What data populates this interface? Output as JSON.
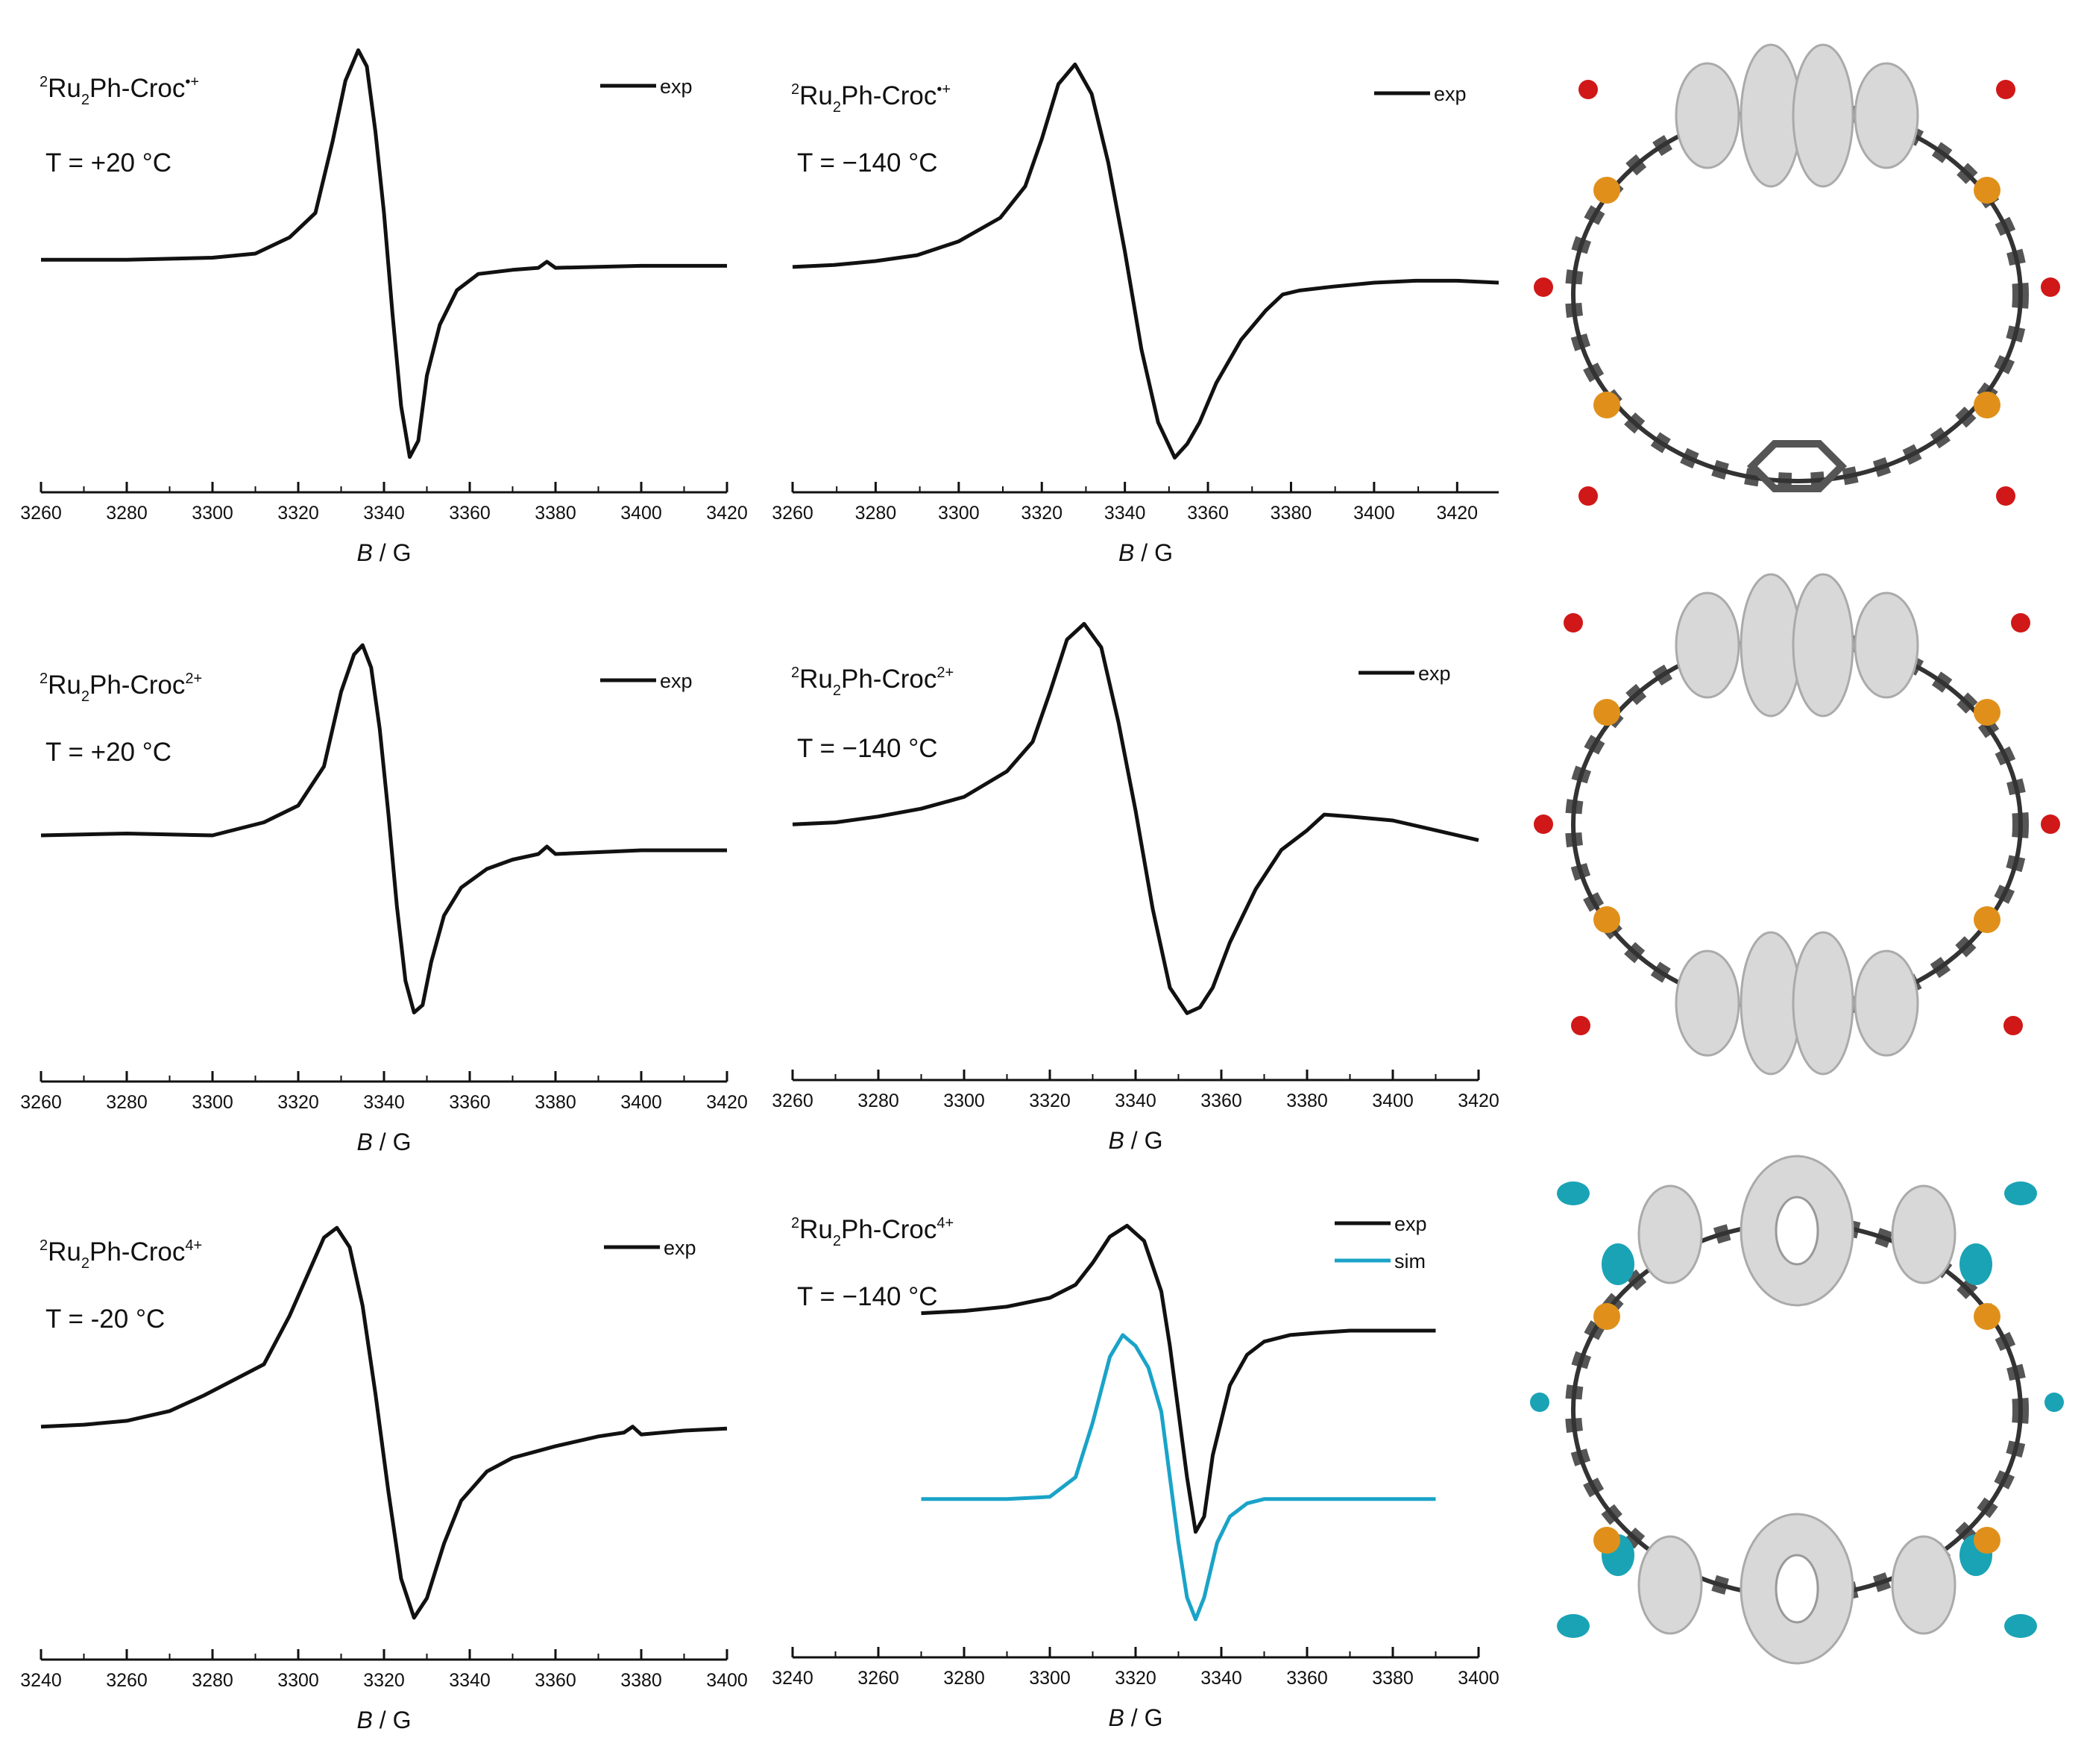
{
  "colors": {
    "exp": "#111111",
    "sim": "#1aa3c8",
    "axis": "#111111"
  },
  "chart_data": [
    {
      "type": "line",
      "label_name": "Ru",
      "label_sub": "2",
      "label_rest": "Ph-Croc",
      "label_sup": "•+",
      "temperature": "T = +20 °C",
      "xlabel_italic": "B",
      "xlabel_rest": " / G",
      "xlim": [
        3260,
        3420
      ],
      "ylim": [
        -1.1,
        1.1
      ],
      "xticks": [
        "3260",
        "3280",
        "3300",
        "3320",
        "3340",
        "3360",
        "3380",
        "3400",
        "3420"
      ],
      "series": [
        {
          "name": "exp",
          "color_key": "exp",
          "x": [
            3260,
            3280,
            3300,
            3310,
            3318,
            3324,
            3328,
            3331,
            3334,
            3336,
            3338,
            3340,
            3342,
            3344,
            3346,
            3348,
            3350,
            3353,
            3357,
            3362,
            3370,
            3376,
            3378,
            3380,
            3400,
            3420
          ],
          "y": [
            -0.03,
            -0.03,
            -0.02,
            0.0,
            0.08,
            0.2,
            0.55,
            0.85,
            1.0,
            0.92,
            0.6,
            0.2,
            -0.3,
            -0.75,
            -1.0,
            -0.92,
            -0.6,
            -0.35,
            -0.18,
            -0.1,
            -0.08,
            -0.07,
            -0.04,
            -0.07,
            -0.06,
            -0.06
          ]
        }
      ]
    },
    {
      "type": "line",
      "label_name": "Ru",
      "label_sub": "2",
      "label_rest": "Ph-Croc",
      "label_sup": "•+",
      "temperature": "T = −140 °C",
      "xlabel_italic": "B",
      "xlabel_rest": " / G",
      "xlim": [
        3260,
        3430
      ],
      "ylim": [
        -1.1,
        1.1
      ],
      "xticks": [
        "3260",
        "3280",
        "3300",
        "3320",
        "3340",
        "3360",
        "3380",
        "3400",
        "3420"
      ],
      "series": [
        {
          "name": "exp",
          "color_key": "exp",
          "x": [
            3260,
            3270,
            3280,
            3290,
            3300,
            3310,
            3316,
            3320,
            3324,
            3328,
            3332,
            3336,
            3340,
            3344,
            3348,
            3352,
            3355,
            3358,
            3362,
            3368,
            3374,
            3378,
            3382,
            3390,
            3400,
            3410,
            3420,
            3430
          ],
          "y": [
            -0.03,
            -0.02,
            0.0,
            0.03,
            0.1,
            0.22,
            0.38,
            0.62,
            0.9,
            1.0,
            0.85,
            0.5,
            0.05,
            -0.45,
            -0.82,
            -1.0,
            -0.93,
            -0.82,
            -0.62,
            -0.4,
            -0.25,
            -0.17,
            -0.15,
            -0.13,
            -0.11,
            -0.1,
            -0.1,
            -0.11
          ]
        }
      ]
    },
    {
      "type": "line",
      "label_name": "Ru",
      "label_sub": "2",
      "label_rest": "Ph-Croc",
      "label_sup": "2+",
      "temperature": "T = +20 °C",
      "xlabel_italic": "B",
      "xlabel_rest": " / G",
      "xlim": [
        3260,
        3420
      ],
      "ylim": [
        -1.1,
        1.1
      ],
      "xticks": [
        "3260",
        "3280",
        "3300",
        "3320",
        "3340",
        "3360",
        "3380",
        "3400",
        "3420"
      ],
      "series": [
        {
          "name": "exp",
          "color_key": "exp",
          "x": [
            3260,
            3280,
            3300,
            3312,
            3320,
            3326,
            3330,
            3333,
            3335,
            3337,
            3339,
            3341,
            3343,
            3345,
            3347,
            3349,
            3351,
            3354,
            3358,
            3364,
            3370,
            3376,
            3378,
            3380,
            3400,
            3420
          ],
          "y": [
            -0.02,
            -0.01,
            -0.02,
            0.05,
            0.14,
            0.35,
            0.75,
            0.95,
            1.0,
            0.88,
            0.55,
            0.1,
            -0.4,
            -0.8,
            -0.97,
            -0.93,
            -0.7,
            -0.45,
            -0.3,
            -0.2,
            -0.15,
            -0.12,
            -0.08,
            -0.12,
            -0.1,
            -0.1
          ]
        }
      ]
    },
    {
      "type": "line",
      "label_name": "Ru",
      "label_sub": "2",
      "label_rest": "Ph-Croc",
      "label_sup": "2+",
      "temperature": "T = −140 °C",
      "xlabel_italic": "B",
      "xlabel_rest": " / G",
      "xlim": [
        3260,
        3420
      ],
      "ylim": [
        -1.1,
        1.1
      ],
      "xticks": [
        "3260",
        "3280",
        "3300",
        "3320",
        "3340",
        "3360",
        "3380",
        "3400",
        "3420"
      ],
      "series": [
        {
          "name": "exp",
          "color_key": "exp",
          "x": [
            3260,
            3270,
            3280,
            3290,
            3300,
            3310,
            3316,
            3320,
            3324,
            3328,
            3332,
            3336,
            3340,
            3344,
            3348,
            3352,
            3355,
            3358,
            3362,
            3368,
            3374,
            3380,
            3384,
            3390,
            3400,
            3410,
            3420
          ],
          "y": [
            -0.02,
            -0.01,
            0.02,
            0.06,
            0.12,
            0.25,
            0.4,
            0.65,
            0.92,
            1.0,
            0.88,
            0.5,
            0.05,
            -0.45,
            -0.85,
            -0.98,
            -0.95,
            -0.85,
            -0.62,
            -0.35,
            -0.15,
            -0.05,
            0.03,
            0.02,
            0.0,
            -0.05,
            -0.1
          ]
        }
      ]
    },
    {
      "type": "line",
      "label_name": "Ru",
      "label_sub": "2",
      "label_rest": "Ph-Croc",
      "label_sup": "4+",
      "temperature": "T = -20 °C",
      "xlabel_italic": "B",
      "xlabel_rest": " / G",
      "xlim": [
        3240,
        3400
      ],
      "ylim": [
        -1.1,
        1.1
      ],
      "xticks": [
        "3240",
        "3260",
        "3280",
        "3300",
        "3320",
        "3340",
        "3360",
        "3380",
        "3400"
      ],
      "series": [
        {
          "name": "exp",
          "color_key": "exp",
          "x": [
            3240,
            3250,
            3260,
            3270,
            3278,
            3285,
            3292,
            3298,
            3302,
            3306,
            3309,
            3312,
            3315,
            3318,
            3321,
            3324,
            3327,
            3330,
            3334,
            3338,
            3344,
            3350,
            3360,
            3370,
            3376,
            3378,
            3380,
            3390,
            3400
          ],
          "y": [
            -0.02,
            -0.01,
            0.01,
            0.06,
            0.14,
            0.22,
            0.3,
            0.55,
            0.75,
            0.95,
            1.0,
            0.9,
            0.6,
            0.15,
            -0.35,
            -0.8,
            -1.0,
            -0.9,
            -0.62,
            -0.4,
            -0.25,
            -0.18,
            -0.12,
            -0.07,
            -0.05,
            -0.02,
            -0.06,
            -0.04,
            -0.03
          ]
        }
      ]
    },
    {
      "type": "line",
      "label_name": "Ru",
      "label_sub": "2",
      "label_rest": "Ph-Croc",
      "label_sup": "4+",
      "temperature": "T = −140 °C",
      "xlabel_italic": "B",
      "xlabel_rest": " / G",
      "xlim": [
        3240,
        3400
      ],
      "ylim": [
        -1.1,
        1.1
      ],
      "xticks": [
        "3240",
        "3260",
        "3280",
        "3300",
        "3320",
        "3340",
        "3360",
        "3380",
        "3400"
      ],
      "series": [
        {
          "name": "exp",
          "color_key": "exp",
          "x": [
            3270,
            3280,
            3290,
            3300,
            3306,
            3310,
            3314,
            3318,
            3322,
            3326,
            3328,
            3330,
            3332,
            3334,
            3336,
            3338,
            3342,
            3346,
            3350,
            3356,
            3362,
            3370,
            3380,
            3390
          ],
          "y": [
            0.45,
            0.46,
            0.48,
            0.52,
            0.58,
            0.68,
            0.8,
            0.85,
            0.78,
            0.55,
            0.3,
            0.0,
            -0.3,
            -0.55,
            -0.48,
            -0.2,
            0.12,
            0.26,
            0.32,
            0.35,
            0.36,
            0.37,
            0.37,
            0.37
          ]
        },
        {
          "name": "sim",
          "color_key": "sim",
          "x": [
            3270,
            3290,
            3300,
            3306,
            3310,
            3314,
            3317,
            3320,
            3323,
            3326,
            3328,
            3330,
            3332,
            3334,
            3336,
            3339,
            3342,
            3346,
            3350,
            3360,
            3370,
            3390
          ],
          "y": [
            -0.4,
            -0.4,
            -0.39,
            -0.3,
            -0.05,
            0.25,
            0.35,
            0.3,
            0.2,
            0.0,
            -0.3,
            -0.6,
            -0.85,
            -0.95,
            -0.85,
            -0.6,
            -0.48,
            -0.42,
            -0.4,
            -0.4,
            -0.4,
            -0.4
          ]
        }
      ]
    }
  ]
}
